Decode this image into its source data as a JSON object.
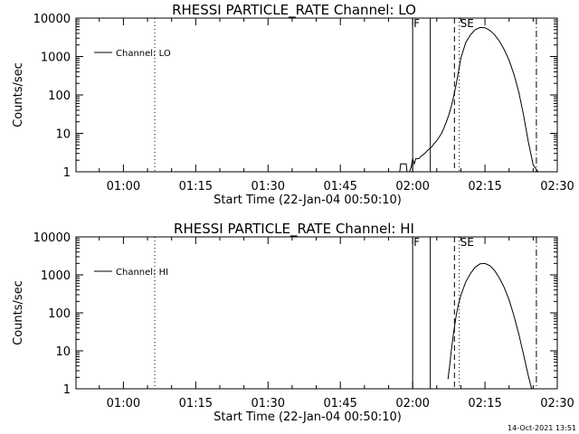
{
  "chart_data": [
    {
      "type": "line",
      "title": "RHESSI PARTICLE_RATE Channel: LO",
      "xlabel": "Start Time (22-Jan-04 00:50:10)",
      "ylabel": "Counts/sec",
      "y_scale": "log",
      "ylim": [
        1,
        10000
      ],
      "xlim": [
        "00:50:10",
        "02:30:00"
      ],
      "x_ticks": [
        "01:00",
        "01:15",
        "01:30",
        "01:45",
        "02:00",
        "02:15",
        "02:30"
      ],
      "y_ticks": [
        "1",
        "10",
        "100",
        "1000",
        "10000"
      ],
      "legend": "top-left",
      "grid": false,
      "series": [
        {
          "name": "Channel: LO",
          "x": [
            "01:57:20",
            "01:57:30",
            "01:57:40",
            "01:58:40",
            "01:58:50",
            "01:59:20",
            "01:59:40",
            "02:00:00",
            "02:00:20",
            "02:00:40",
            "02:01:00",
            "02:01:20",
            "02:01:40",
            "02:02:00",
            "02:02:30",
            "02:03:00",
            "02:03:30",
            "02:04:00",
            "02:04:30",
            "02:05:00",
            "02:05:30",
            "02:06:00",
            "02:06:30",
            "02:07:00",
            "02:07:30",
            "02:08:00",
            "02:08:30",
            "02:09:00",
            "02:09:30",
            "02:10:00",
            "02:11:00",
            "02:12:00",
            "02:13:00",
            "02:14:00",
            "02:15:00",
            "02:16:00",
            "02:17:00",
            "02:18:00",
            "02:19:00",
            "02:20:00",
            "02:21:00",
            "02:22:00",
            "02:23:00",
            "02:24:00",
            "02:25:00",
            "02:26:00"
          ],
          "values": [
            1,
            1.6,
            1.6,
            1.6,
            1,
            1,
            1.3,
            2.2,
            1.6,
            2.2,
            2.2,
            2.2,
            2.5,
            2.7,
            3.0,
            3.5,
            4.0,
            4.5,
            5.5,
            6.5,
            8,
            10,
            14,
            20,
            30,
            50,
            90,
            180,
            400,
            900,
            2300,
            3700,
            5000,
            5700,
            5600,
            4800,
            3700,
            2500,
            1500,
            800,
            350,
            120,
            30,
            6,
            1.5,
            1
          ]
        }
      ],
      "vlines": [
        {
          "x": "01:06:30",
          "style": "dotted"
        },
        {
          "x": "02:00:00",
          "style": "solid",
          "label": "F"
        },
        {
          "x": "02:03:40",
          "style": "solid"
        },
        {
          "x": "02:08:40",
          "style": "dashed"
        },
        {
          "x": "02:09:40",
          "style": "dotted",
          "label": "SE"
        },
        {
          "x": "02:25:40",
          "style": "dash-dot"
        }
      ]
    },
    {
      "type": "line",
      "title": "RHESSI PARTICLE_RATE Channel: HI",
      "xlabel": "Start Time (22-Jan-04 00:50:10)",
      "ylabel": "Counts/sec",
      "y_scale": "log",
      "ylim": [
        1,
        10000
      ],
      "xlim": [
        "00:50:10",
        "02:30:00"
      ],
      "x_ticks": [
        "01:00",
        "01:15",
        "01:30",
        "01:45",
        "02:00",
        "02:15",
        "02:30"
      ],
      "y_ticks": [
        "1",
        "10",
        "100",
        "1000",
        "10000"
      ],
      "legend": "top-left",
      "grid": false,
      "series": [
        {
          "name": "Channel: HI",
          "x": [
            "02:07:20",
            "02:07:40",
            "02:08:00",
            "02:08:30",
            "02:09:00",
            "02:09:30",
            "02:10:00",
            "02:11:00",
            "02:12:00",
            "02:13:00",
            "02:14:00",
            "02:15:00",
            "02:16:00",
            "02:17:00",
            "02:18:00",
            "02:19:00",
            "02:20:00",
            "02:21:00",
            "02:22:00",
            "02:23:00",
            "02:24:00",
            "02:24:40"
          ],
          "values": [
            1.8,
            4,
            10,
            30,
            80,
            170,
            290,
            650,
            1100,
            1600,
            1950,
            2000,
            1750,
            1300,
            820,
            460,
            220,
            85,
            28,
            8,
            2.2,
            1
          ]
        }
      ],
      "vlines": [
        {
          "x": "01:06:30",
          "style": "dotted"
        },
        {
          "x": "02:00:00",
          "style": "solid",
          "label": "F"
        },
        {
          "x": "02:03:40",
          "style": "solid"
        },
        {
          "x": "02:08:40",
          "style": "dashed"
        },
        {
          "x": "02:09:40",
          "style": "dotted",
          "label": "SE"
        },
        {
          "x": "02:25:40",
          "style": "dash-dot"
        }
      ]
    }
  ],
  "footer": {
    "timestamp": "14-Oct-2021 13:51"
  }
}
